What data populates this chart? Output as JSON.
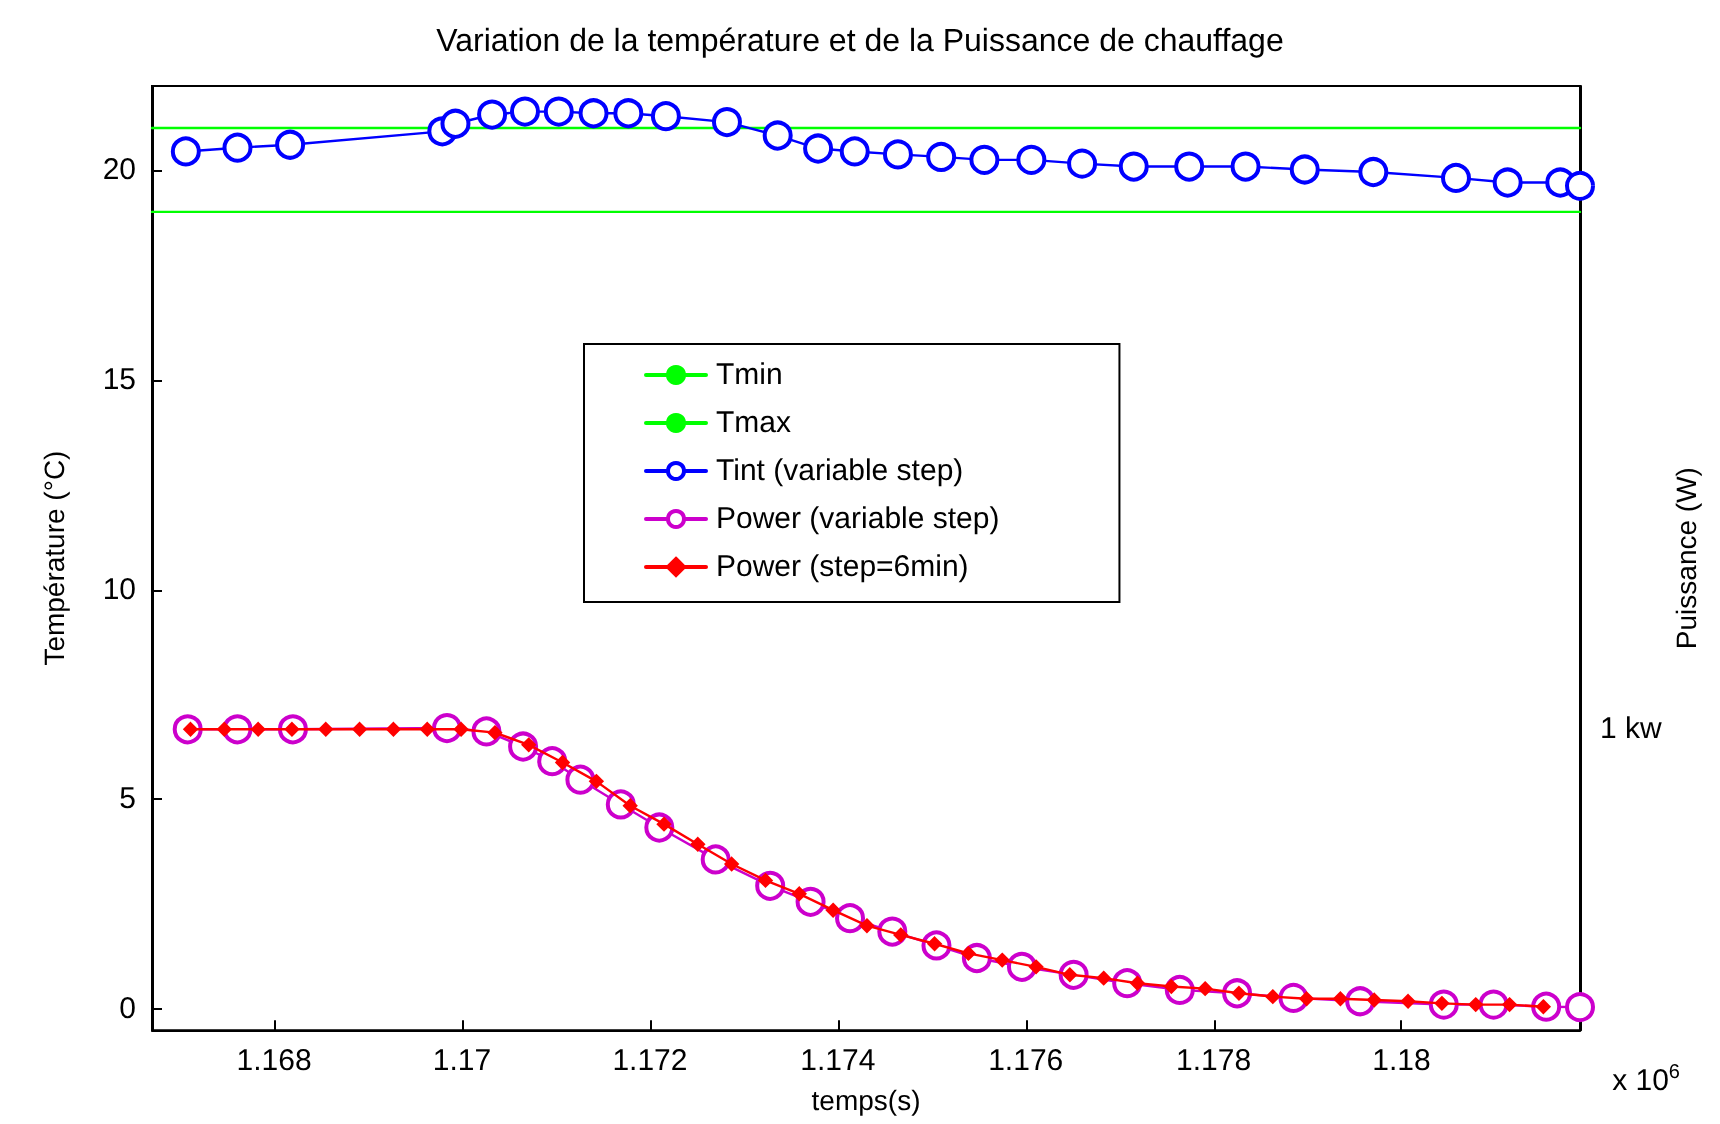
{
  "chart_data": {
    "type": "line",
    "title": "Variation de la température et de la Puissance de chauffage",
    "xlabel": "temps(s)",
    "ylabel": "Température (°C)",
    "y2label": "Puissance (W)",
    "annotations": [
      "x 10$^{6}$",
      "1 kw"
    ],
    "xlim": [
      1.1667,
      1.1819
    ],
    "xticks": [
      1.168,
      1.17,
      1.172,
      1.174,
      1.176,
      1.178,
      1.18
    ],
    "ylim": [
      -0.5,
      22
    ],
    "yticks": [
      0,
      5,
      10,
      15,
      20
    ],
    "grid": false,
    "legend": "center",
    "line_style": "solid",
    "series": [
      {
        "name": "Tmin",
        "color": "#00ff00",
        "marker": "none",
        "x": [
          1.1667,
          1.1819
        ],
        "values": [
          19,
          19
        ]
      },
      {
        "name": "Tmax",
        "color": "#00ff00",
        "marker": "none",
        "x": [
          1.1667,
          1.1819
        ],
        "values": [
          21,
          21
        ]
      },
      {
        "name": "Tint (variable step)",
        "color": "#0000ff",
        "marker": "circle",
        "x": [
          1.16706,
          1.16761,
          1.16817,
          1.16979,
          1.16993,
          1.17032,
          1.17067,
          1.17103,
          1.1714,
          1.17177,
          1.17217,
          1.17282,
          1.17336,
          1.17379,
          1.17418,
          1.17464,
          1.1751,
          1.17556,
          1.17606,
          1.1766,
          1.17715,
          1.17774,
          1.17834,
          1.17897,
          1.1797,
          1.18058,
          1.18113,
          1.18169,
          1.1819
        ],
        "values": [
          20.44,
          20.53,
          20.6,
          20.92,
          21.1,
          21.32,
          21.39,
          21.39,
          21.35,
          21.35,
          21.28,
          21.14,
          20.82,
          20.51,
          20.44,
          20.37,
          20.31,
          20.24,
          20.24,
          20.15,
          20.08,
          20.08,
          20.08,
          20.01,
          19.95,
          19.81,
          19.7,
          19.7,
          19.62
        ]
      },
      {
        "name": "Power (variable step)",
        "color": "#cc00cc",
        "marker": "circle",
        "x": [
          1.16708,
          1.16761,
          1.1682,
          1.16984,
          1.17026,
          1.17065,
          1.17096,
          1.17126,
          1.17169,
          1.1721,
          1.1727,
          1.17328,
          1.17371,
          1.17413,
          1.17458,
          1.17505,
          1.17548,
          1.17596,
          1.17651,
          1.17708,
          1.17764,
          1.17825,
          1.17885,
          1.17956,
          1.18045,
          1.18098,
          1.18154,
          1.1819
        ],
        "values": [
          6.67,
          6.67,
          6.67,
          6.7,
          6.62,
          6.26,
          5.91,
          5.47,
          4.88,
          4.33,
          3.57,
          2.94,
          2.56,
          2.17,
          1.85,
          1.52,
          1.22,
          1.01,
          0.82,
          0.62,
          0.46,
          0.38,
          0.27,
          0.19,
          0.11,
          0.11,
          0.06,
          0.05
        ]
      },
      {
        "name": "Power (step=6min)",
        "color": "#ff0000",
        "marker": "diamond",
        "x": [
          1.16711,
          1.16747,
          1.16783,
          1.16819,
          1.16855,
          1.16891,
          1.16927,
          1.16963,
          1.16999,
          1.17035,
          1.17071,
          1.17107,
          1.17143,
          1.17179,
          1.17215,
          1.17251,
          1.17287,
          1.17323,
          1.17359,
          1.17395,
          1.17431,
          1.17467,
          1.17503,
          1.17539,
          1.17575,
          1.17611,
          1.17647,
          1.17683,
          1.17719,
          1.17755,
          1.17791,
          1.17827,
          1.17863,
          1.17899,
          1.17935,
          1.17971,
          1.18007,
          1.18043,
          1.18079,
          1.18115,
          1.18151
        ],
        "values": [
          6.67,
          6.67,
          6.67,
          6.67,
          6.67,
          6.67,
          6.67,
          6.67,
          6.67,
          6.59,
          6.3,
          5.88,
          5.43,
          4.85,
          4.41,
          3.93,
          3.46,
          3.07,
          2.75,
          2.36,
          1.99,
          1.77,
          1.56,
          1.33,
          1.17,
          1.01,
          0.82,
          0.74,
          0.62,
          0.54,
          0.49,
          0.38,
          0.3,
          0.25,
          0.25,
          0.22,
          0.19,
          0.14,
          0.11,
          0.11,
          0.06
        ]
      }
    ]
  }
}
